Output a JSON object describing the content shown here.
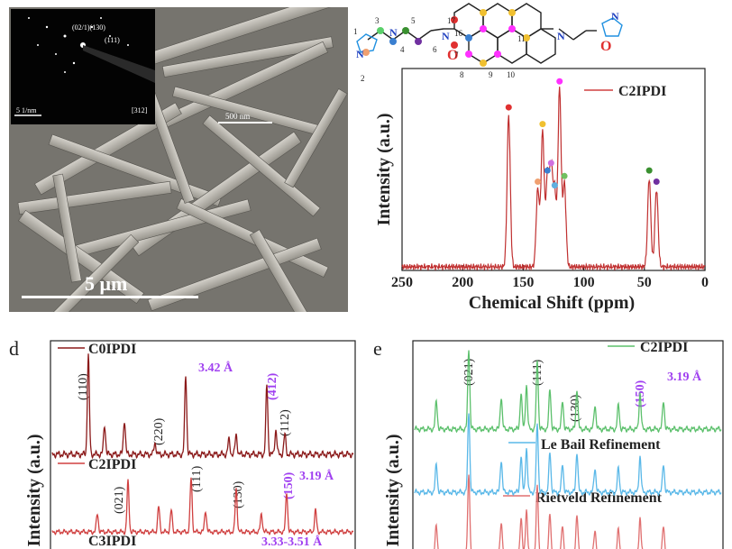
{
  "sem": {
    "main_scale": "5 μm",
    "inset_scale_left": "5 1/nm",
    "inset_zone": "[312]",
    "inset_ring_labels": [
      "(02/1)(130)",
      "(111)"
    ],
    "mid_scale": "500 nm"
  },
  "nmr": {
    "legend": "C2IPDI",
    "structure_labels": [
      "1",
      "2",
      "3",
      "4",
      "5",
      "6",
      "7",
      "8",
      "9",
      "10",
      "11",
      "16",
      "17"
    ],
    "chart_data": {
      "type": "line",
      "xlabel": "Chemical Shift (ppm)",
      "ylabel": "Intensity (a.u.)",
      "xlim": [
        250,
        0
      ],
      "ticks": [
        "250",
        "200",
        "150",
        "100",
        "50",
        "0"
      ],
      "peaks": [
        {
          "x": 162,
          "h": 0.82,
          "dot": "#e03030"
        },
        {
          "x": 138,
          "h": 0.42,
          "dot": "#f0a070"
        },
        {
          "x": 134,
          "h": 0.73,
          "dot": "#f0c030"
        },
        {
          "x": 130,
          "h": 0.48,
          "dot": "#3a7fd0"
        },
        {
          "x": 127,
          "h": 0.52,
          "dot": "#d070e0"
        },
        {
          "x": 124,
          "h": 0.4,
          "dot": "#60b0e0"
        },
        {
          "x": 120,
          "h": 0.96,
          "dot": "#ff30ff"
        },
        {
          "x": 116,
          "h": 0.45,
          "dot": "#70c060"
        },
        {
          "x": 46,
          "h": 0.48,
          "dot": "#3a9030"
        },
        {
          "x": 40,
          "h": 0.42,
          "dot": "#7030a0"
        }
      ]
    }
  },
  "xrd_d": {
    "panel_letter": "d",
    "ylabel": "Intensity (a.u.)",
    "series": [
      {
        "name": "C0IPDI",
        "color": "#8b1a1a",
        "spacing": "3.42 Å",
        "labels": [
          "(110)",
          "(220)",
          "(412)",
          "(112)"
        ]
      },
      {
        "name": "C2IPDI",
        "color": "#d04040",
        "spacing": "3.19 Å",
        "labels": [
          "(021)",
          "(111)",
          "(130)",
          "(150)"
        ]
      },
      {
        "name": "C3IPDI",
        "color": "#d04040",
        "spacing": "3.33-3.51 Å",
        "labels": []
      }
    ]
  },
  "xrd_e": {
    "panel_letter": "e",
    "ylabel": "Intensity (a.u.)",
    "series": [
      {
        "name": "C2IPDI",
        "color": "#5cc06c"
      },
      {
        "name": "Le Bail Refinement",
        "color": "#5ab8e8"
      },
      {
        "name": "Rietveld Refinement",
        "color": "#e07070"
      }
    ],
    "spacing": "3.19 Å",
    "labels": [
      "(021)",
      "(111)",
      "(130)",
      "(150)"
    ]
  }
}
